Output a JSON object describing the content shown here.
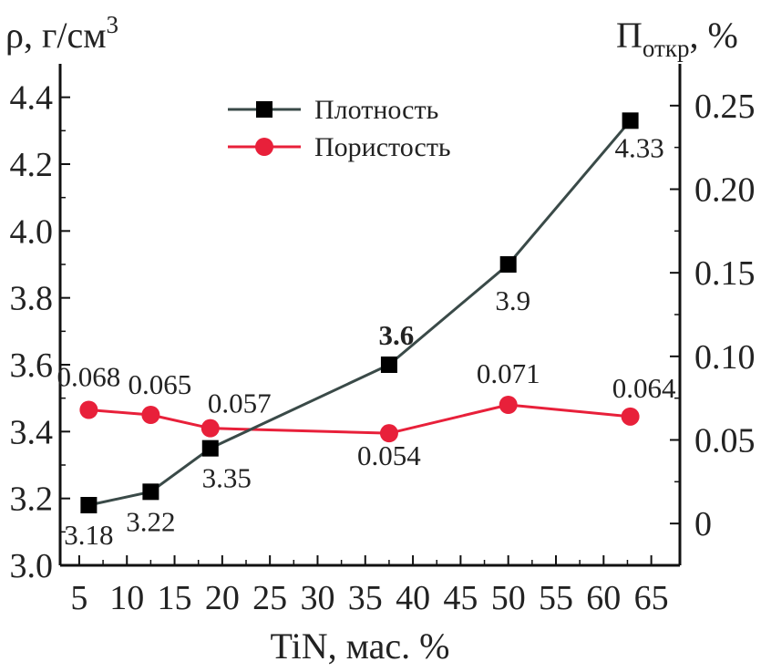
{
  "chart_data": {
    "type": "line",
    "x_axis": {
      "label": "TiN, мас. %",
      "range": [
        3,
        68
      ],
      "ticks": [
        5,
        10,
        15,
        20,
        25,
        30,
        35,
        40,
        45,
        50,
        55,
        60,
        65
      ],
      "tick_labels": [
        "5",
        "10",
        "15",
        "20",
        "25",
        "30",
        "35",
        "40",
        "45",
        "50",
        "55",
        "60",
        "65"
      ]
    },
    "y_left": {
      "label_main": "ρ, г/см",
      "label_sup": "3",
      "range": [
        3.0,
        4.5
      ],
      "ticks": [
        3.0,
        3.2,
        3.4,
        3.6,
        3.8,
        4.0,
        4.2,
        4.4
      ],
      "tick_labels": [
        "3.0",
        "3.2",
        "3.4",
        "3.6",
        "3.8",
        "4.0",
        "4.2",
        "4.4"
      ]
    },
    "y_right": {
      "label_main": "П",
      "label_sub": "откр",
      "label_tail": ", %",
      "range": [
        -0.025,
        0.275
      ],
      "ticks": [
        0,
        0.05,
        0.1,
        0.15,
        0.2,
        0.25
      ],
      "tick_labels": [
        "0",
        "0.05",
        "0.10",
        "0.15",
        "0.20",
        "0.25"
      ]
    },
    "series": [
      {
        "name": "Плотность",
        "axis": "left",
        "color": "#3a4a48",
        "marker": "square",
        "x": [
          6,
          12.5,
          18.75,
          37.5,
          50,
          62.8
        ],
        "values": [
          3.18,
          3.22,
          3.35,
          3.6,
          3.9,
          4.33
        ],
        "labels": [
          "3.18",
          "3.22",
          "3.35",
          "3.6",
          "3.9",
          "4.33"
        ]
      },
      {
        "name": "Пористость",
        "axis": "right",
        "color": "#e8203a",
        "marker": "circle",
        "x": [
          6,
          12.5,
          18.75,
          37.5,
          50,
          62.8
        ],
        "values": [
          0.068,
          0.065,
          0.057,
          0.054,
          0.071,
          0.064
        ],
        "labels": [
          "0.068",
          "0.065",
          "0.057",
          "0.054",
          "0.071",
          "0.064"
        ]
      }
    ],
    "legend": {
      "position": "top-left"
    }
  }
}
